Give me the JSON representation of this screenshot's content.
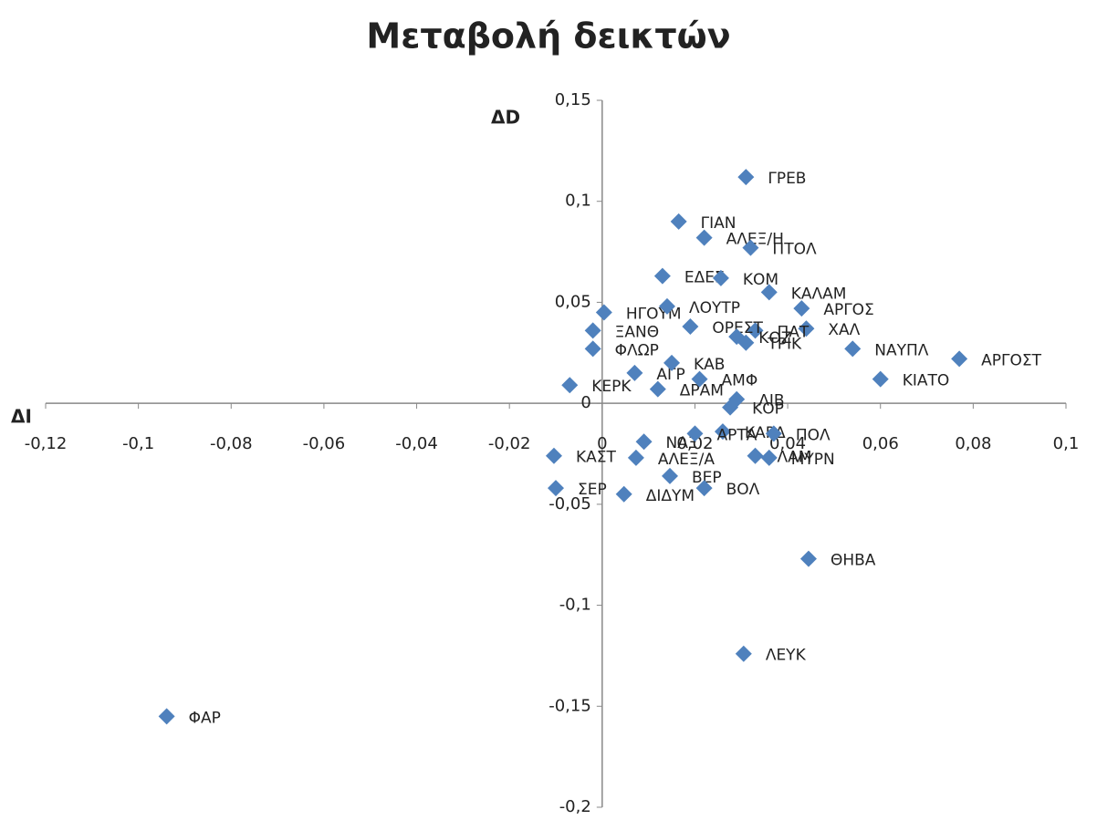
{
  "chart_data": {
    "type": "scatter",
    "title": "Μεταβολή δεικτών",
    "x_label": "ΔI",
    "y_label": "ΔD",
    "color": "#4f81bd",
    "labels": [
      "ΓΡΕΒ",
      "ΓΙΑΝ",
      "ΑΛΕΞ/Η",
      "ΠΤΟΛ",
      "ΕΔΕΣ",
      "ΚΟΜ",
      "ΚΑΛΑΜ",
      "ΑΡΓΟΣ",
      "ΧΑΛ",
      "ΠΑΤ",
      "ΝΑΥΠΛ",
      "ΑΡΓΟΣΤ",
      "ΚΙΑΤΟ",
      "ΗΓΟΥΜ",
      "ΛΟΥΤΡ",
      "ΟΡΕΣΤ",
      "ΞΑΝΘ",
      "ΚΟΖ",
      "ΤΡΙΚ",
      "ΦΛΩΡ",
      "ΚΕΡΚ",
      "ΛΙΒ",
      "ΚΟΡ",
      "ΚΑΡΔ",
      "ΠΟΛ",
      "ΛΑΜ",
      "ΜΥΡΝ",
      "ΚΑΣΤ",
      "ΣΕΡ",
      "ΔΙΔΥΜ",
      "ΒΕΡ",
      "ΒΟΛ",
      "ΝΑΞ",
      "ΑΛΕΞ/Α",
      "ΑΡΤΑ",
      "ΘΗΒΑ",
      "ΛΕΥΚ",
      "ΦΑΡ",
      "ΑΓΡ",
      "ΚΑΒ",
      "ΔΡΑΜ",
      "ΑΜΦ"
    ],
    "x": [
      0.031,
      0.0165,
      0.022,
      0.032,
      0.013,
      0.0256,
      0.036,
      0.043,
      0.044,
      0.033,
      0.054,
      0.077,
      0.06,
      0.0004,
      0.014,
      0.019,
      -0.002,
      0.029,
      0.031,
      -0.002,
      -0.007,
      0.029,
      0.0276,
      0.026,
      0.037,
      0.033,
      0.036,
      -0.0104,
      -0.01,
      0.0047,
      0.0146,
      0.022,
      0.009,
      0.0073,
      0.02,
      0.0445,
      0.0305,
      -0.0939,
      0.007,
      0.015,
      0.012,
      0.021
    ],
    "values": [
      0.112,
      0.09,
      0.082,
      0.077,
      0.063,
      0.062,
      0.055,
      0.047,
      0.037,
      0.036,
      0.027,
      0.022,
      0.012,
      0.045,
      0.048,
      0.038,
      0.036,
      0.033,
      0.03,
      0.027,
      0.009,
      0.002,
      -0.002,
      -0.014,
      -0.015,
      -0.026,
      -0.027,
      -0.026,
      -0.042,
      -0.045,
      -0.036,
      -0.042,
      -0.019,
      -0.027,
      -0.015,
      -0.077,
      -0.124,
      -0.155,
      0.015,
      0.02,
      0.007,
      0.012
    ],
    "xlim": [
      -0.12,
      0.1
    ],
    "ylim": [
      -0.2,
      0.15
    ],
    "xticks": [
      {
        "value": -0.12,
        "label": "-0,12"
      },
      {
        "value": -0.1,
        "label": "-0,1"
      },
      {
        "value": -0.08,
        "label": "-0,08"
      },
      {
        "value": -0.06,
        "label": "-0,06"
      },
      {
        "value": -0.04,
        "label": "-0,04"
      },
      {
        "value": -0.02,
        "label": "-0,02"
      },
      0,
      {
        "value": 0.02,
        "label": "0,02"
      },
      {
        "value": 0.04,
        "label": "0,04"
      },
      {
        "value": 0.06,
        "label": "0,06"
      },
      {
        "value": 0.08,
        "label": "0,08"
      },
      {
        "value": 0.1,
        "label": "0,1"
      }
    ],
    "yticks": [
      {
        "value": 0.15,
        "label": "0,15"
      },
      {
        "value": 0.1,
        "label": "0,1"
      },
      {
        "value": 0.05,
        "label": "0,05"
      },
      0,
      {
        "value": -0.05,
        "label": "-0,05"
      },
      {
        "value": -0.1,
        "label": "-0,1"
      },
      {
        "value": -0.15,
        "label": "-0,15"
      },
      {
        "value": -0.2,
        "label": "-0,2"
      }
    ]
  }
}
